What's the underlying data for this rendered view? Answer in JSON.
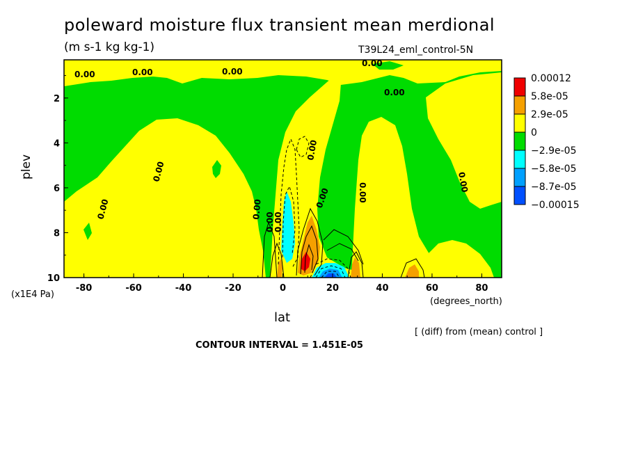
{
  "chart_data": {
    "type": "heatmap",
    "title": "poleward moisture flux transient mean merdional",
    "units": "(m s-1 kg kg-1)",
    "run_label": "T39L24_eml_control-5N",
    "xlabel": "lat",
    "x_units": "(degrees_north)",
    "ylabel": "plev",
    "y_units": "(x1E4 Pa)",
    "x_ticks": [
      "-80",
      "-60",
      "-40",
      "-20",
      "0",
      "20",
      "40",
      "60",
      "80"
    ],
    "y_ticks": [
      "2",
      "4",
      "6",
      "8",
      "10"
    ],
    "xlim": [
      -88,
      88
    ],
    "ylim": [
      10,
      0.3
    ],
    "legend": [
      "0.00012",
      "5.8e-05",
      "2.9e-05",
      "0",
      "−2.9e-05",
      "−5.8e-05",
      "−8.7e-05",
      "−0.00015"
    ],
    "legend_colors": [
      "#f00000",
      "#f5a000",
      "#ffff00",
      "#00dc00",
      "#00ffff",
      "#00a0ff",
      "#0050ff"
    ],
    "contour_labels": [
      "0.00",
      "0.00",
      "0.00",
      "0.00",
      "0.00",
      "0.00",
      "0.00",
      "0.00",
      "0.00",
      "0.00",
      "0.00",
      "0.00",
      "0.00",
      "0.00"
    ],
    "note": "[ (diff) from (mean) control ]",
    "contour_interval": "CONTOUR INTERVAL = 1.451E-05"
  }
}
